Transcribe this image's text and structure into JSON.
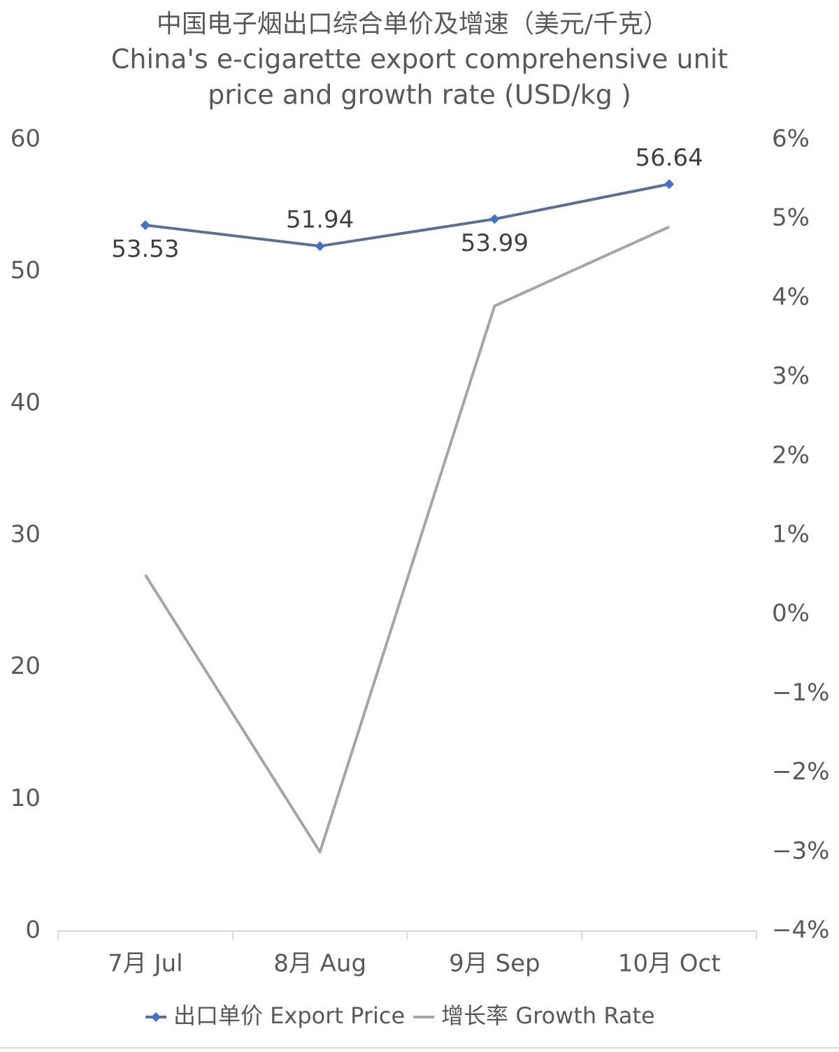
{
  "chart_data": {
    "type": "line",
    "title": [
      "中国电子烟出口综合单价及增速（美元/千克）",
      "China's e-cigarette export comprehensive unit",
      "price and growth rate (USD/kg )"
    ],
    "categories": [
      "7月 Jul",
      "8月 Aug",
      "9月 Sep",
      "10月 Oct"
    ],
    "series": [
      {
        "name": "出口单价 Export Price",
        "color": "#5b7093",
        "marker_color": "#4472c4",
        "values": [
          53.53,
          51.94,
          53.99,
          56.64
        ],
        "show_labels": true
      },
      {
        "name": "增长率 Growth Rate",
        "color": "#a5a5a5",
        "axis": "y2",
        "values": [
          0.5,
          -3.0,
          3.9,
          4.9
        ]
      }
    ],
    "ylim": [
      0,
      60
    ],
    "yticks": [
      0,
      10,
      20,
      30,
      40,
      50,
      60
    ],
    "y2lim": [
      -4,
      6
    ],
    "y2ticks": [
      {
        "value": -4,
        "label": "−4%"
      },
      {
        "value": -3,
        "label": "−3%"
      },
      {
        "value": -2,
        "label": "−2%"
      },
      {
        "value": -1,
        "label": "−1%"
      },
      {
        "value": 0,
        "label": "0%"
      },
      {
        "value": 1,
        "label": "1%"
      },
      {
        "value": 2,
        "label": "2%"
      },
      {
        "value": 3,
        "label": "3%"
      },
      {
        "value": 4,
        "label": "4%"
      },
      {
        "value": 5,
        "label": "5%"
      },
      {
        "value": 6,
        "label": "6%"
      }
    ],
    "grid": false,
    "legend": "bottom"
  }
}
